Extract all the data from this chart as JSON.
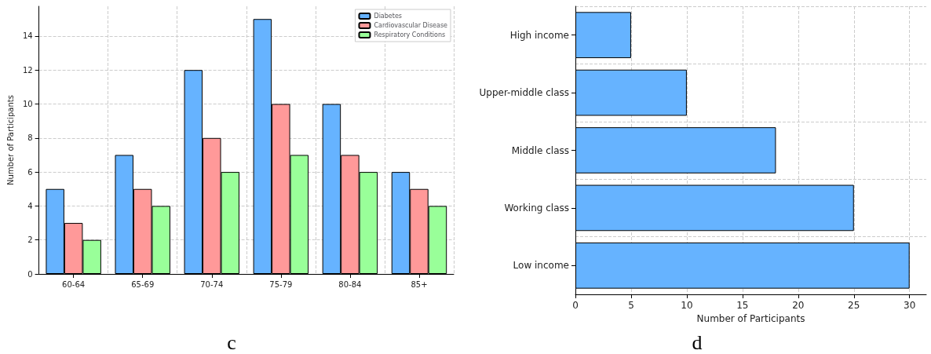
{
  "chart_data": [
    {
      "type": "bar",
      "ylabel": "Number of Participants",
      "categories": [
        "60-64",
        "65-69",
        "70-74",
        "75-79",
        "80-84",
        "85+"
      ],
      "series": [
        {
          "name": "Diabetes",
          "color": "#66b3ff",
          "values": [
            5,
            7,
            12,
            15,
            10,
            6
          ]
        },
        {
          "name": "Cardiovascular Disease",
          "color": "#ff9999",
          "values": [
            3,
            5,
            8,
            10,
            7,
            5
          ]
        },
        {
          "name": "Respiratory Conditions",
          "color": "#99ff99",
          "values": [
            2,
            4,
            6,
            7,
            6,
            4
          ]
        }
      ],
      "ylim": [
        0,
        15.75
      ],
      "yticks": [
        0,
        2,
        4,
        6,
        8,
        10,
        12,
        14
      ],
      "grid": true,
      "legend": "top right",
      "annotations": [
        "c"
      ]
    },
    {
      "type": "bar",
      "orientation": "horizontal",
      "xlabel": "Number of Participants",
      "categories": [
        "High income",
        "Upper-middle class",
        "Middle class",
        "Working class",
        "Low income"
      ],
      "series": [
        {
          "color": "#66b3ff",
          "values": [
            5,
            10,
            18,
            25,
            30
          ]
        }
      ],
      "xlim": [
        0,
        31.5
      ],
      "xticks": [
        0,
        5,
        10,
        15,
        20,
        25,
        30
      ],
      "grid": true,
      "annotations": [
        "d"
      ]
    }
  ]
}
